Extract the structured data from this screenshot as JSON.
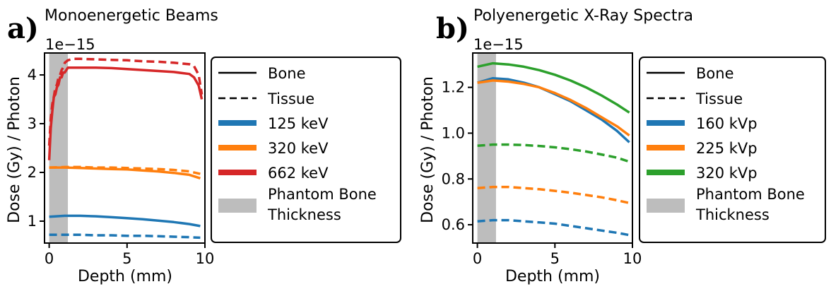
{
  "panels": [
    {
      "letter": "a)",
      "title": "Monoenergetic Beams",
      "multiplier": "1e−15",
      "xlabel": "Depth (mm)",
      "ylabel": "Dose (Gy) / Photon",
      "xticks": [
        "0",
        "5",
        "10"
      ],
      "yticks": [
        "1",
        "2",
        "3",
        "4"
      ],
      "legend": [
        "Bone",
        "Tissue",
        "125 keV",
        "320 keV",
        "662 keV",
        "Phantom Bone",
        "Thickness"
      ]
    },
    {
      "letter": "b)",
      "title": "Polyenergetic X-Ray Spectra",
      "multiplier": "1e−15",
      "xlabel": "Depth (mm)",
      "ylabel": "Dose (Gy) / Photon",
      "xticks": [
        "0",
        "5",
        "10"
      ],
      "yticks": [
        "0.6",
        "0.8",
        "1.0",
        "1.2"
      ],
      "legend": [
        "Bone",
        "Tissue",
        "160 kVp",
        "225 kVp",
        "320 kVp",
        "Phantom Bone",
        "Thickness"
      ]
    }
  ],
  "chart_data": [
    {
      "type": "line",
      "title": "Monoenergetic Beams",
      "xlabel": "Depth (mm)",
      "ylabel": "Dose (Gy) / Photon",
      "y_scale_factor": "1e-15",
      "xlim": [
        -0.3,
        10.0
      ],
      "ylim": [
        0.55,
        4.45
      ],
      "grid": false,
      "legend_placement": "outside-right",
      "shaded_region": {
        "label": "Phantom Bone Thickness",
        "x": [
          0,
          1.2
        ],
        "color": "#bdbdbd"
      },
      "series": [
        {
          "name": "125 keV",
          "style": "solid",
          "color": "#1f77b4",
          "x": [
            0,
            1,
            2,
            3,
            4,
            5,
            6,
            7,
            8,
            9,
            9.7
          ],
          "y": [
            1.09,
            1.11,
            1.11,
            1.1,
            1.08,
            1.06,
            1.04,
            1.01,
            0.98,
            0.94,
            0.9
          ]
        },
        {
          "name": "125 keV",
          "style": "dashed",
          "color": "#1f77b4",
          "x": [
            0,
            1,
            2,
            3,
            4,
            5,
            6,
            7,
            8,
            9,
            9.7
          ],
          "y": [
            0.72,
            0.72,
            0.72,
            0.71,
            0.71,
            0.7,
            0.7,
            0.69,
            0.68,
            0.67,
            0.66
          ]
        },
        {
          "name": "320 keV",
          "style": "solid",
          "color": "#ff7f0e",
          "x": [
            0,
            1,
            2,
            3,
            4,
            5,
            6,
            7,
            8,
            9,
            9.7
          ],
          "y": [
            2.1,
            2.1,
            2.09,
            2.08,
            2.07,
            2.06,
            2.04,
            2.02,
            1.99,
            1.95,
            1.88
          ]
        },
        {
          "name": "320 keV",
          "style": "dashed",
          "color": "#ff7f0e",
          "x": [
            0,
            1,
            2,
            3,
            4,
            5,
            6,
            7,
            8,
            9,
            9.7
          ],
          "y": [
            2.1,
            2.11,
            2.11,
            2.1,
            2.1,
            2.09,
            2.08,
            2.07,
            2.05,
            2.02,
            1.97
          ]
        },
        {
          "name": "662 keV",
          "style": "solid",
          "color": "#d62728",
          "x": [
            0,
            0.1,
            0.2,
            0.3,
            0.4,
            0.5,
            0.6,
            0.7,
            0.8,
            0.9,
            1.0,
            1.2,
            1.5,
            2,
            3,
            4,
            5,
            6,
            7,
            8,
            9,
            9.3,
            9.6,
            9.8
          ],
          "y": [
            2.25,
            2.9,
            3.25,
            3.55,
            3.6,
            3.75,
            3.8,
            3.95,
            3.95,
            4.05,
            4.05,
            4.15,
            4.15,
            4.15,
            4.15,
            4.14,
            4.12,
            4.1,
            4.08,
            4.06,
            4.02,
            3.95,
            3.78,
            3.5
          ]
        },
        {
          "name": "662 keV",
          "style": "dashed",
          "color": "#d62728",
          "x": [
            0,
            0.1,
            0.2,
            0.3,
            0.4,
            0.5,
            0.6,
            0.7,
            0.8,
            0.9,
            1.0,
            1.2,
            1.5,
            2,
            3,
            4,
            5,
            6,
            7,
            8,
            9,
            9.3,
            9.6,
            9.8
          ],
          "y": [
            2.55,
            3.1,
            3.4,
            3.55,
            3.75,
            3.8,
            3.95,
            4.0,
            4.1,
            4.15,
            4.25,
            4.3,
            4.33,
            4.33,
            4.32,
            4.31,
            4.3,
            4.28,
            4.27,
            4.25,
            4.22,
            4.18,
            4.0,
            3.6
          ]
        }
      ]
    },
    {
      "type": "line",
      "title": "Polyenergetic X-Ray Spectra",
      "xlabel": "Depth (mm)",
      "ylabel": "Dose (Gy) / Photon",
      "y_scale_factor": "1e-15",
      "xlim": [
        -0.3,
        10.0
      ],
      "ylim": [
        0.52,
        1.35
      ],
      "grid": false,
      "legend_placement": "outside-right",
      "shaded_region": {
        "label": "Phantom Bone Thickness",
        "x": [
          0,
          1.2
        ],
        "color": "#bdbdbd"
      },
      "series": [
        {
          "name": "160 kVp",
          "style": "solid",
          "color": "#1f77b4",
          "x": [
            0,
            1,
            2,
            3,
            4,
            5,
            6,
            7,
            8,
            9,
            9.8
          ],
          "y": [
            1.22,
            1.24,
            1.235,
            1.22,
            1.2,
            1.17,
            1.14,
            1.1,
            1.06,
            1.01,
            0.96
          ]
        },
        {
          "name": "160 kVp",
          "style": "dashed",
          "color": "#1f77b4",
          "x": [
            0,
            1,
            2,
            3,
            4,
            5,
            6,
            7,
            8,
            9,
            9.8
          ],
          "y": [
            0.615,
            0.62,
            0.62,
            0.615,
            0.61,
            0.605,
            0.595,
            0.585,
            0.575,
            0.565,
            0.555
          ]
        },
        {
          "name": "225 kVp",
          "style": "solid",
          "color": "#ff7f0e",
          "x": [
            0,
            1,
            2,
            3,
            4,
            5,
            6,
            7,
            8,
            9,
            9.8
          ],
          "y": [
            1.22,
            1.23,
            1.225,
            1.215,
            1.2,
            1.175,
            1.145,
            1.11,
            1.07,
            1.03,
            0.99
          ]
        },
        {
          "name": "225 kVp",
          "style": "dashed",
          "color": "#ff7f0e",
          "x": [
            0,
            1,
            2,
            3,
            4,
            5,
            6,
            7,
            8,
            9,
            9.8
          ],
          "y": [
            0.76,
            0.765,
            0.765,
            0.76,
            0.755,
            0.748,
            0.74,
            0.73,
            0.72,
            0.707,
            0.695
          ]
        },
        {
          "name": "320 kVp",
          "style": "solid",
          "color": "#2ca02c",
          "x": [
            0,
            1,
            2,
            3,
            4,
            5,
            6,
            7,
            8,
            9,
            9.8
          ],
          "y": [
            1.29,
            1.305,
            1.3,
            1.29,
            1.275,
            1.255,
            1.23,
            1.2,
            1.165,
            1.125,
            1.09
          ]
        },
        {
          "name": "320 kVp",
          "style": "dashed",
          "color": "#2ca02c",
          "x": [
            0,
            1,
            2,
            3,
            4,
            5,
            6,
            7,
            8,
            9,
            9.8
          ],
          "y": [
            0.945,
            0.95,
            0.95,
            0.948,
            0.944,
            0.938,
            0.93,
            0.92,
            0.907,
            0.893,
            0.875
          ]
        }
      ]
    }
  ]
}
